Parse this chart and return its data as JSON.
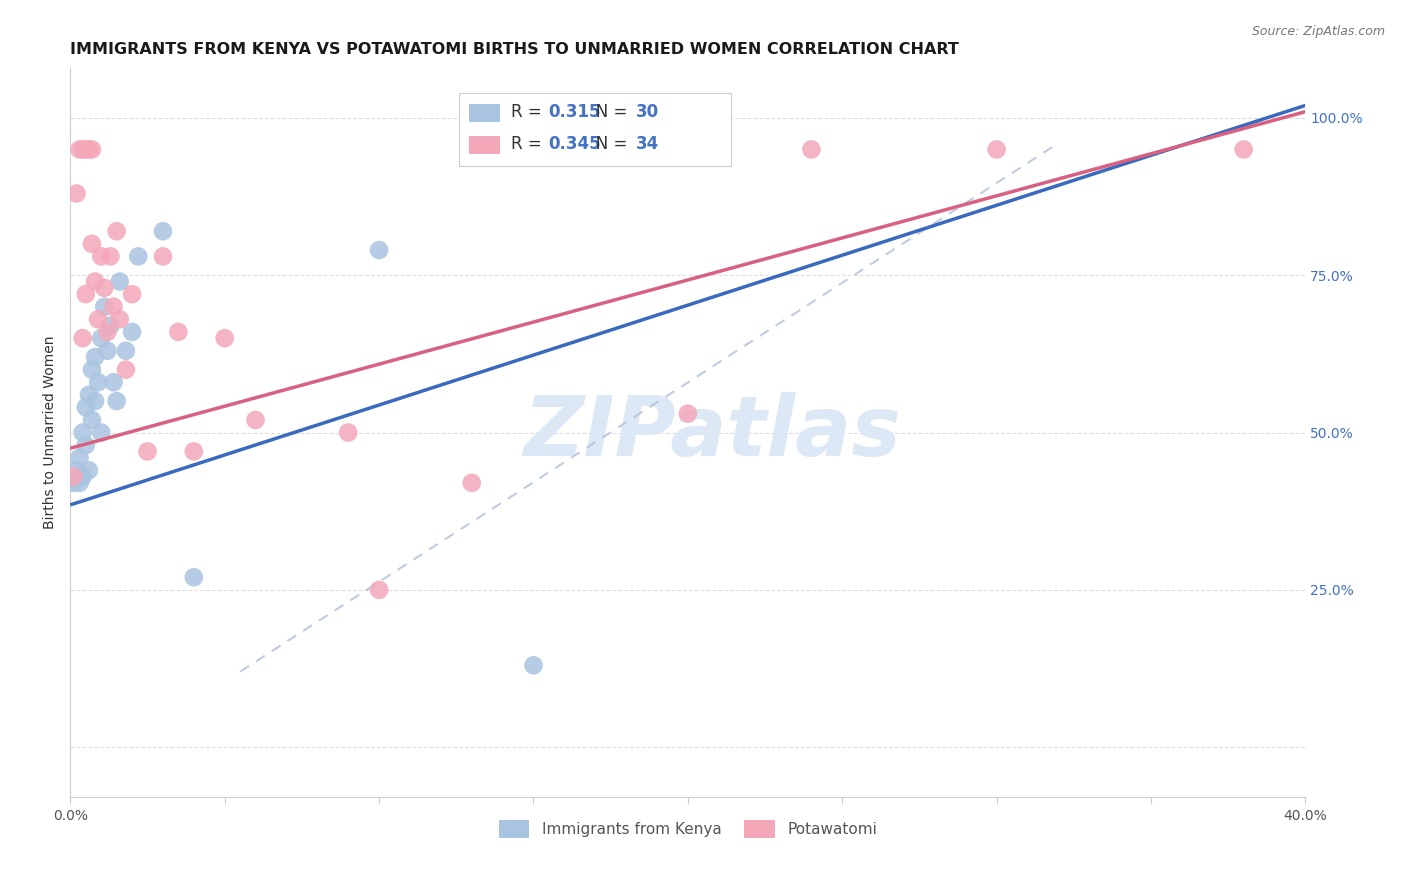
{
  "title": "IMMIGRANTS FROM KENYA VS POTAWATOMI BIRTHS TO UNMARRIED WOMEN CORRELATION CHART",
  "source": "Source: ZipAtlas.com",
  "ylabel_label": "Births to Unmarried Women",
  "x_min": 0.0,
  "x_max": 0.4,
  "y_min": 0.0,
  "y_max": 1.05,
  "blue_R": "0.315",
  "blue_N": "30",
  "pink_R": "0.345",
  "pink_N": "34",
  "blue_color": "#a8c4e0",
  "pink_color": "#f4a7b9",
  "blue_line_color": "#3a6abf",
  "pink_line_color": "#d96080",
  "dash_color": "#b0bfd8",
  "watermark_text": "ZIPatlas",
  "watermark_color": "#dce8f5",
  "blue_scatter_x": [
    0.001,
    0.002,
    0.003,
    0.003,
    0.004,
    0.004,
    0.005,
    0.005,
    0.006,
    0.006,
    0.007,
    0.007,
    0.008,
    0.008,
    0.009,
    0.01,
    0.01,
    0.011,
    0.012,
    0.013,
    0.014,
    0.015,
    0.016,
    0.018,
    0.02,
    0.022,
    0.03,
    0.04,
    0.1,
    0.15
  ],
  "blue_scatter_y": [
    0.42,
    0.44,
    0.42,
    0.46,
    0.43,
    0.5,
    0.48,
    0.54,
    0.44,
    0.56,
    0.52,
    0.6,
    0.55,
    0.62,
    0.58,
    0.5,
    0.65,
    0.7,
    0.63,
    0.67,
    0.58,
    0.55,
    0.74,
    0.63,
    0.66,
    0.78,
    0.82,
    0.27,
    0.79,
    0.13
  ],
  "pink_scatter_x": [
    0.001,
    0.002,
    0.003,
    0.004,
    0.004,
    0.005,
    0.005,
    0.006,
    0.007,
    0.007,
    0.008,
    0.009,
    0.01,
    0.011,
    0.012,
    0.013,
    0.014,
    0.015,
    0.016,
    0.018,
    0.02,
    0.025,
    0.03,
    0.035,
    0.04,
    0.05,
    0.06,
    0.09,
    0.1,
    0.13,
    0.2,
    0.24,
    0.3,
    0.38
  ],
  "pink_scatter_y": [
    0.43,
    0.88,
    0.95,
    0.95,
    0.65,
    0.95,
    0.72,
    0.95,
    0.95,
    0.8,
    0.74,
    0.68,
    0.78,
    0.73,
    0.66,
    0.78,
    0.7,
    0.82,
    0.68,
    0.6,
    0.72,
    0.47,
    0.78,
    0.66,
    0.47,
    0.65,
    0.52,
    0.5,
    0.25,
    0.42,
    0.53,
    0.95,
    0.95,
    0.95
  ],
  "blue_line": [
    0.0,
    0.385,
    0.4,
    1.02
  ],
  "pink_line": [
    0.0,
    0.475,
    0.4,
    1.01
  ],
  "dash_line": [
    0.055,
    0.12,
    0.32,
    0.96
  ],
  "grid_color": "#d8d8d8",
  "background_color": "#ffffff",
  "right_tick_color": "#4472c4",
  "y_ticks": [
    0.0,
    0.25,
    0.5,
    0.75,
    1.0
  ],
  "y_tick_labels_right": [
    "",
    "25.0%",
    "50.0%",
    "75.0%",
    "100.0%"
  ],
  "x_tick_positions": [
    0.0,
    0.05,
    0.1,
    0.15,
    0.2,
    0.25,
    0.3,
    0.35,
    0.4
  ],
  "x_tick_labels": [
    "0.0%",
    "",
    "",
    "",
    "",
    "",
    "",
    "",
    "40.0%"
  ],
  "legend_blue_label": "Immigrants from Kenya",
  "legend_pink_label": "Potawatomi",
  "title_fontsize": 11.5,
  "tick_fontsize": 10,
  "source_fontsize": 9,
  "legend_fontsize": 12
}
